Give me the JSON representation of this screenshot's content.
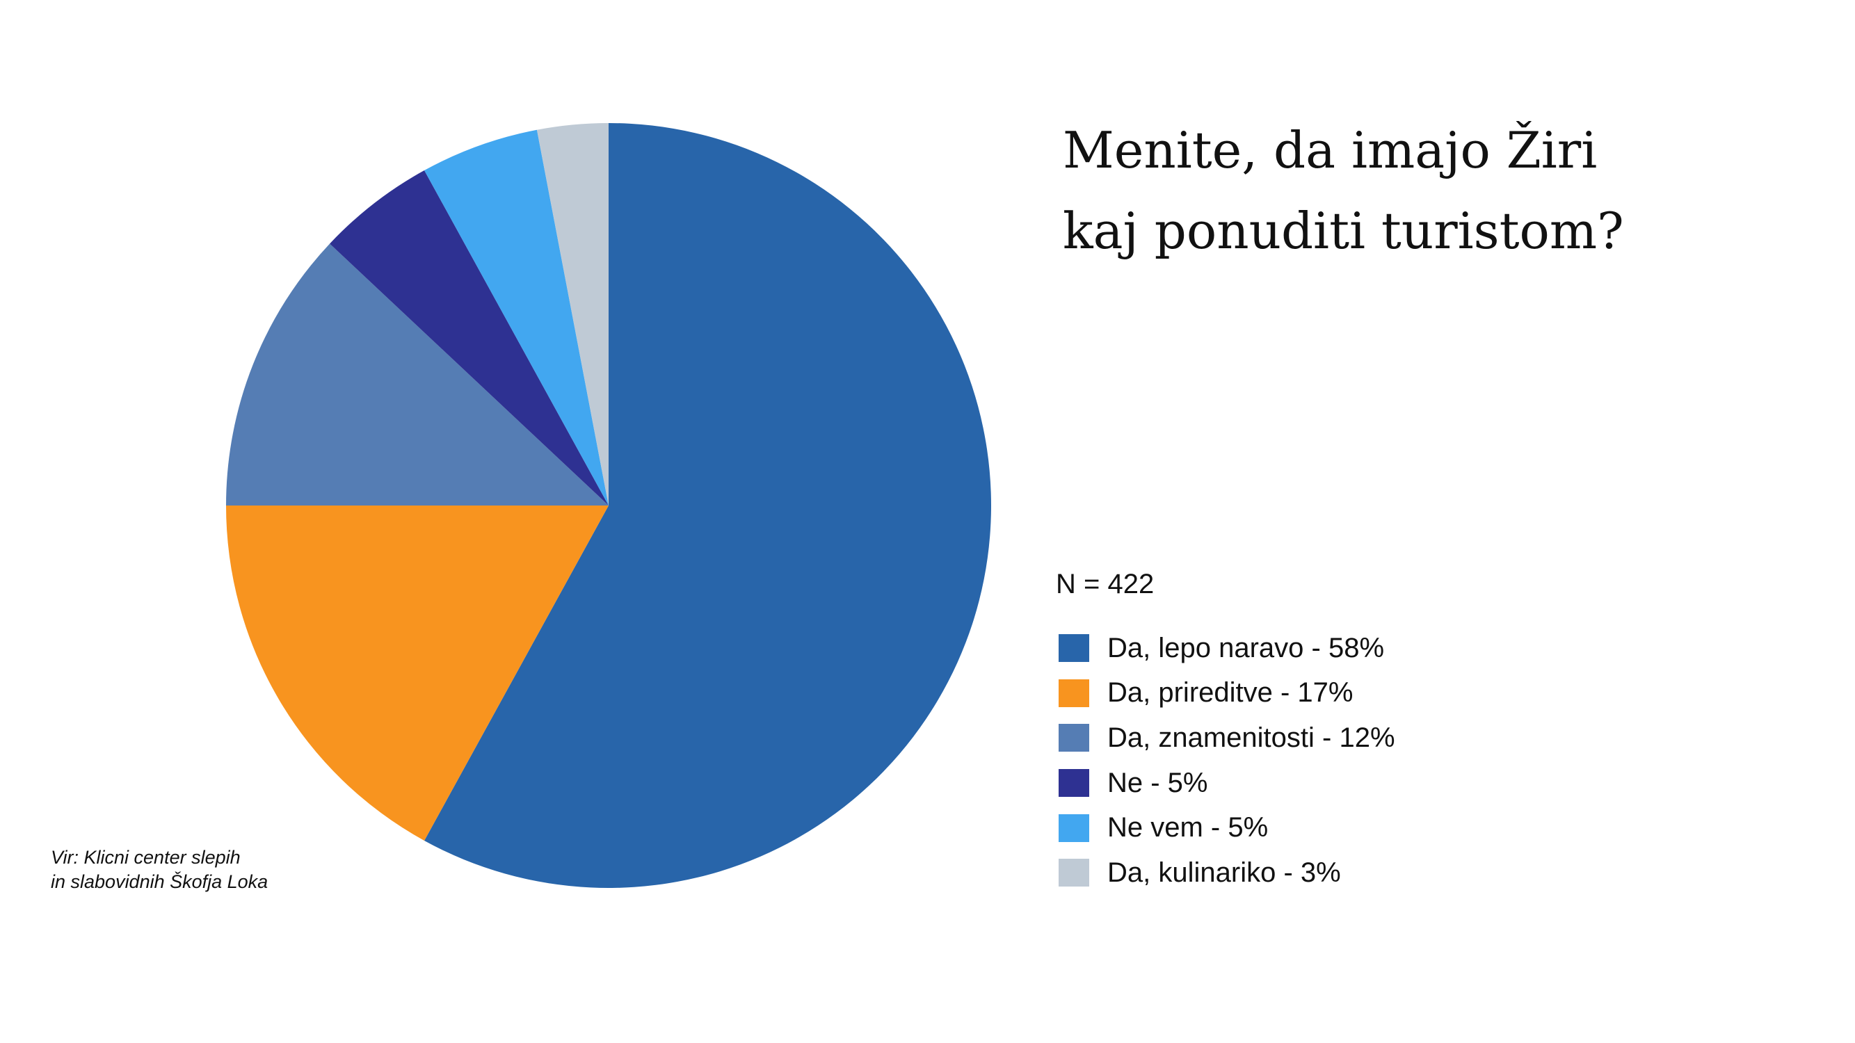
{
  "chart_data": {
    "type": "pie",
    "title_lines": [
      "Menite, da imajo Žiri",
      "kaj ponuditi turistom?"
    ],
    "sample_size": "N = 422",
    "slices": [
      {
        "label": "Da, lepo naravo - 58%",
        "value": 58,
        "color": "#2865AA"
      },
      {
        "label": "Da, prireditve - 17%",
        "value": 17,
        "color": "#F8941F"
      },
      {
        "label": "Da, znamenitosti - 12%",
        "value": 12,
        "color": "#557DB4"
      },
      {
        "label": "Ne - 5%",
        "value": 5,
        "color": "#2E3192"
      },
      {
        "label": "Ne vem - 5%",
        "value": 5,
        "color": "#42A7F0"
      },
      {
        "label": "Da, kulinariko - 3%",
        "value": 3,
        "color": "#BFCAD5"
      }
    ],
    "legend_position": "right",
    "source_lines": [
      "Vir: Klicni center slepih",
      "in slabovidnih Škofja Loka"
    ]
  }
}
